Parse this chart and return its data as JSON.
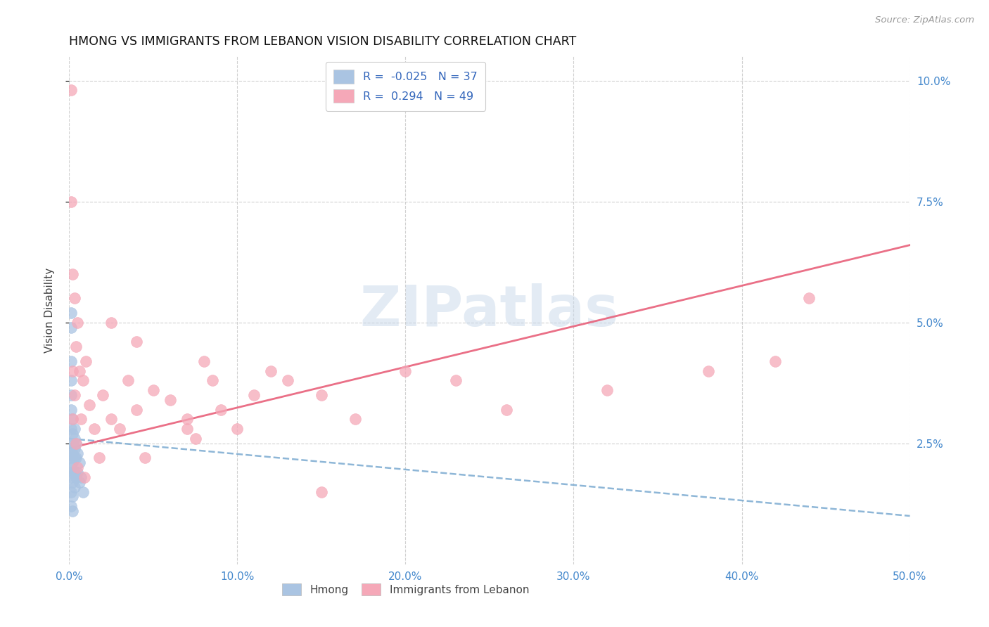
{
  "title": "HMONG VS IMMIGRANTS FROM LEBANON VISION DISABILITY CORRELATION CHART",
  "source": "Source: ZipAtlas.com",
  "ylabel": "Vision Disability",
  "xlim": [
    0,
    0.5
  ],
  "ylim": [
    0,
    0.105
  ],
  "xticks": [
    0.0,
    0.1,
    0.2,
    0.3,
    0.4,
    0.5
  ],
  "yticks": [
    0.025,
    0.05,
    0.075,
    0.1
  ],
  "ytick_labels": [
    "2.5%",
    "5.0%",
    "7.5%",
    "10.0%"
  ],
  "xtick_labels": [
    "0.0%",
    "10.0%",
    "20.0%",
    "30.0%",
    "40.0%",
    "50.0%"
  ],
  "hmong_R": -0.025,
  "hmong_N": 37,
  "lebanon_R": 0.294,
  "lebanon_N": 49,
  "hmong_color": "#aac4e2",
  "lebanon_color": "#f5a8b8",
  "hmong_line_color": "#7aaad0",
  "lebanon_line_color": "#e8607a",
  "watermark_text": "ZIPatlas",
  "hmong_x": [
    0.001,
    0.001,
    0.001,
    0.001,
    0.001,
    0.001,
    0.001,
    0.001,
    0.001,
    0.001,
    0.001,
    0.001,
    0.001,
    0.002,
    0.002,
    0.002,
    0.002,
    0.002,
    0.002,
    0.002,
    0.002,
    0.002,
    0.003,
    0.003,
    0.003,
    0.003,
    0.003,
    0.003,
    0.004,
    0.004,
    0.004,
    0.005,
    0.005,
    0.006,
    0.006,
    0.007,
    0.008
  ],
  "hmong_y": [
    0.052,
    0.049,
    0.042,
    0.038,
    0.035,
    0.032,
    0.028,
    0.024,
    0.022,
    0.02,
    0.018,
    0.015,
    0.012,
    0.03,
    0.027,
    0.025,
    0.023,
    0.021,
    0.019,
    0.017,
    0.014,
    0.011,
    0.028,
    0.026,
    0.024,
    0.022,
    0.019,
    0.016,
    0.025,
    0.022,
    0.018,
    0.023,
    0.019,
    0.021,
    0.017,
    0.018,
    0.015
  ],
  "lebanon_x": [
    0.001,
    0.001,
    0.002,
    0.002,
    0.002,
    0.003,
    0.003,
    0.004,
    0.004,
    0.005,
    0.005,
    0.006,
    0.007,
    0.008,
    0.009,
    0.01,
    0.012,
    0.015,
    0.018,
    0.02,
    0.025,
    0.03,
    0.035,
    0.04,
    0.045,
    0.05,
    0.06,
    0.07,
    0.075,
    0.08,
    0.085,
    0.09,
    0.1,
    0.11,
    0.12,
    0.13,
    0.15,
    0.17,
    0.2,
    0.23,
    0.26,
    0.32,
    0.38,
    0.42,
    0.44,
    0.04,
    0.025,
    0.07,
    0.15
  ],
  "lebanon_y": [
    0.098,
    0.075,
    0.06,
    0.04,
    0.03,
    0.055,
    0.035,
    0.045,
    0.025,
    0.05,
    0.02,
    0.04,
    0.03,
    0.038,
    0.018,
    0.042,
    0.033,
    0.028,
    0.022,
    0.035,
    0.03,
    0.028,
    0.038,
    0.032,
    0.022,
    0.036,
    0.034,
    0.03,
    0.026,
    0.042,
    0.038,
    0.032,
    0.028,
    0.035,
    0.04,
    0.038,
    0.035,
    0.03,
    0.04,
    0.038,
    0.032,
    0.036,
    0.04,
    0.042,
    0.055,
    0.046,
    0.05,
    0.028,
    0.015
  ],
  "lebanon_line_x0": 0.0,
  "lebanon_line_y0": 0.024,
  "lebanon_line_x1": 0.5,
  "lebanon_line_y1": 0.066,
  "hmong_line_x0": 0.0,
  "hmong_line_y0": 0.026,
  "hmong_line_x1": 0.5,
  "hmong_line_y1": 0.01
}
